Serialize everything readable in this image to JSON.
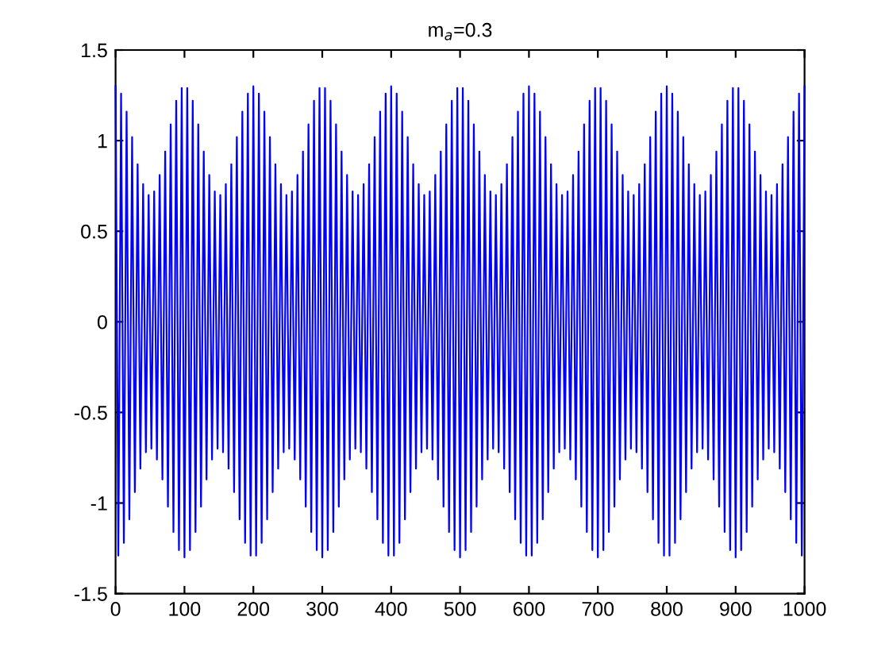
{
  "chart_data": {
    "type": "line",
    "title": "m$_{a}$=0.3",
    "xlim": [
      0,
      1000
    ],
    "xticks": [
      0,
      100,
      200,
      300,
      400,
      500,
      600,
      700,
      800,
      900,
      1000
    ],
    "ylim": [
      -1.5,
      1.5
    ],
    "yticks": [
      -1.5,
      -1,
      -0.5,
      0,
      0.5,
      1,
      1.5
    ],
    "grid": false,
    "marker": "none",
    "line_style": "solid",
    "series": [
      {
        "color": "#0000ff",
        "x": [
          0,
          4,
          8,
          12,
          16,
          20,
          24,
          28,
          32,
          36,
          40,
          44,
          48,
          52,
          56,
          60,
          64,
          68,
          72,
          76,
          80,
          84,
          88,
          92,
          96,
          100,
          104,
          108,
          112,
          116,
          120,
          124,
          128,
          132,
          136,
          140,
          144,
          148,
          152,
          156,
          160,
          164,
          168,
          172,
          176,
          180,
          184,
          188,
          192,
          196,
          200,
          204,
          208,
          212,
          216,
          220,
          224,
          228,
          232,
          236,
          240,
          244,
          248,
          252,
          256,
          260,
          264,
          268,
          272,
          276,
          280,
          284,
          288,
          292,
          296,
          300,
          304,
          308,
          312,
          316,
          320,
          324,
          328,
          332,
          336,
          340,
          344,
          348,
          352,
          356,
          360,
          364,
          368,
          372,
          376,
          380,
          384,
          388,
          392,
          396,
          400,
          404,
          408,
          412,
          416,
          420,
          424,
          428,
          432,
          436,
          440,
          444,
          448,
          452,
          456,
          460,
          464,
          468,
          472,
          476,
          480,
          484,
          488,
          492,
          496,
          500,
          504,
          508,
          512,
          516,
          520,
          524,
          528,
          532,
          536,
          540,
          544,
          548,
          552,
          556,
          560,
          564,
          568,
          572,
          576,
          580,
          584,
          588,
          592,
          596,
          600,
          604,
          608,
          612,
          616,
          620,
          624,
          628,
          632,
          636,
          640,
          644,
          648,
          652,
          656,
          660,
          664,
          668,
          672,
          676,
          680,
          684,
          688,
          692,
          696,
          700,
          704,
          708,
          712,
          716,
          720,
          724,
          728,
          732,
          736,
          740,
          744,
          748,
          752,
          756,
          760,
          764,
          768,
          772,
          776,
          780,
          784,
          788,
          792,
          796,
          800,
          804,
          808,
          812,
          816,
          820,
          824,
          828,
          832,
          836,
          840,
          844,
          848,
          852,
          856,
          860,
          864,
          868,
          872,
          876,
          880,
          884,
          888,
          892,
          896,
          900,
          904,
          908,
          912,
          916,
          920,
          924,
          928,
          932,
          936,
          940,
          944,
          948,
          952,
          956,
          960,
          964,
          968,
          972,
          976,
          980,
          984,
          988,
          992,
          996,
          1000
        ],
        "values": [
          1.3,
          -1.29,
          1.26,
          -1.22,
          1.16,
          -1.09,
          1.02,
          -0.94,
          0.87,
          -0.81,
          0.76,
          -0.72,
          0.7,
          -0.7,
          0.72,
          -0.76,
          0.81,
          -0.87,
          0.94,
          -1.02,
          1.09,
          -1.16,
          1.22,
          -1.26,
          1.29,
          -1.3,
          1.29,
          -1.26,
          1.22,
          -1.16,
          1.09,
          -1.02,
          0.94,
          -0.87,
          0.81,
          -0.76,
          0.72,
          -0.7,
          0.7,
          -0.72,
          0.76,
          -0.81,
          0.87,
          -0.94,
          1.02,
          -1.09,
          1.16,
          -1.22,
          1.26,
          -1.29,
          1.3,
          -1.29,
          1.26,
          -1.22,
          1.16,
          -1.09,
          1.02,
          -0.94,
          0.87,
          -0.81,
          0.76,
          -0.72,
          0.7,
          -0.7,
          0.72,
          -0.76,
          0.81,
          -0.87,
          0.94,
          -1.02,
          1.09,
          -1.16,
          1.22,
          -1.26,
          1.29,
          -1.3,
          1.29,
          -1.26,
          1.22,
          -1.16,
          1.09,
          -1.02,
          0.94,
          -0.87,
          0.81,
          -0.76,
          0.72,
          -0.7,
          0.7,
          -0.72,
          0.76,
          -0.81,
          0.87,
          -0.94,
          1.02,
          -1.09,
          1.16,
          -1.22,
          1.26,
          -1.29,
          1.3,
          -1.29,
          1.26,
          -1.22,
          1.16,
          -1.09,
          1.02,
          -0.94,
          0.87,
          -0.81,
          0.76,
          -0.72,
          0.7,
          -0.7,
          0.72,
          -0.76,
          0.81,
          -0.87,
          0.94,
          -1.02,
          1.09,
          -1.16,
          1.22,
          -1.26,
          1.29,
          -1.3,
          1.29,
          -1.26,
          1.22,
          -1.16,
          1.09,
          -1.02,
          0.94,
          -0.87,
          0.81,
          -0.76,
          0.72,
          -0.7,
          0.7,
          -0.72,
          0.76,
          -0.81,
          0.87,
          -0.94,
          1.02,
          -1.09,
          1.16,
          -1.22,
          1.26,
          -1.29,
          1.3,
          -1.29,
          1.26,
          -1.22,
          1.16,
          -1.09,
          1.02,
          -0.94,
          0.87,
          -0.81,
          0.76,
          -0.72,
          0.7,
          -0.7,
          0.72,
          -0.76,
          0.81,
          -0.87,
          0.94,
          -1.02,
          1.09,
          -1.16,
          1.22,
          -1.26,
          1.29,
          -1.3,
          1.29,
          -1.26,
          1.22,
          -1.16,
          1.09,
          -1.02,
          0.94,
          -0.87,
          0.81,
          -0.76,
          0.72,
          -0.7,
          0.7,
          -0.72,
          0.76,
          -0.81,
          0.87,
          -0.94,
          1.02,
          -1.09,
          1.16,
          -1.22,
          1.26,
          -1.29,
          1.3,
          -1.29,
          1.26,
          -1.22,
          1.16,
          -1.09,
          1.02,
          -0.94,
          0.87,
          -0.81,
          0.76,
          -0.72,
          0.7,
          -0.7,
          0.72,
          -0.76,
          0.81,
          -0.87,
          0.94,
          -1.02,
          1.09,
          -1.16,
          1.22,
          -1.26,
          1.29,
          -1.3,
          1.29,
          -1.26,
          1.22,
          -1.16,
          1.09,
          -1.02,
          0.94,
          -0.87,
          0.81,
          -0.76,
          0.72,
          -0.7,
          0.7,
          -0.72,
          0.76,
          -0.81,
          0.87,
          -0.94,
          1.02,
          -1.09,
          1.16,
          -1.22,
          1.26,
          -1.29,
          1.3
        ]
      }
    ]
  }
}
